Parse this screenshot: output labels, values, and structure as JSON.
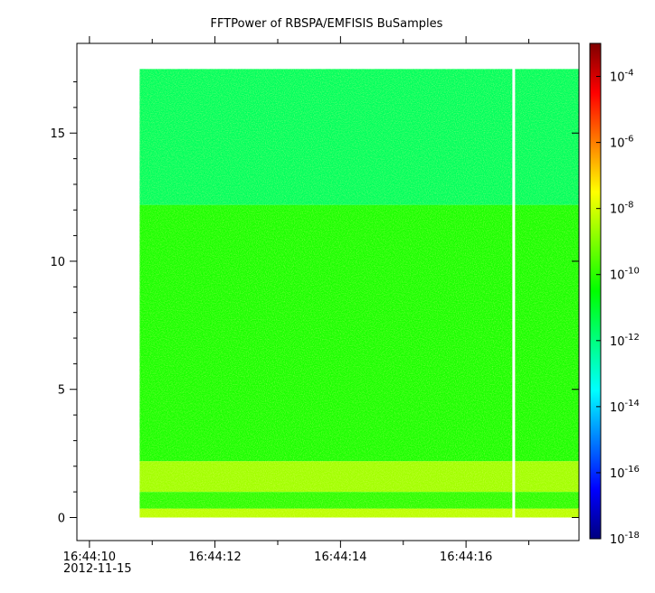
{
  "chart_data": {
    "type": "heatmap",
    "title": "FFTPower of RBSPA/EMFISIS  BuSamples",
    "xlabel": "",
    "ylabel": "",
    "x_date_label": "2012-11-15",
    "x_tick_labels": [
      "16:44:10",
      "16:44:12",
      "16:44:14",
      "16:44:16"
    ],
    "x_tick_seconds": [
      10,
      12,
      14,
      16
    ],
    "x_minor_tick_seconds": [
      11,
      13,
      15,
      17
    ],
    "xlim_seconds": [
      9.8,
      17.8
    ],
    "data_x_range_seconds": [
      10.8,
      17.8
    ],
    "gap_seconds": 16.76,
    "y_tick_labels": [
      "0",
      "5",
      "10",
      "15"
    ],
    "y_tick_values": [
      0,
      5,
      10,
      15
    ],
    "ylim": [
      -0.9,
      18.5
    ],
    "data_y_range": [
      0,
      17.5
    ],
    "colorbar": {
      "scale": "log",
      "range": [
        -18,
        -3
      ],
      "tick_exponents": [
        -18,
        -16,
        -14,
        -12,
        -10,
        -8,
        -6,
        -4
      ],
      "tick_base": "10",
      "colors": [
        "#00007f",
        "#0000ff",
        "#007fff",
        "#00ffff",
        "#00ff7f",
        "#00ff00",
        "#7fff00",
        "#ffff00",
        "#ff7f00",
        "#ff0000",
        "#7f0000"
      ]
    },
    "bands": [
      {
        "y_range": [
          0,
          0.35
        ],
        "log_power": -8.3
      },
      {
        "y_range": [
          0.35,
          1.0
        ],
        "log_power": -10.0
      },
      {
        "y_range": [
          1.0,
          2.2
        ],
        "log_power": -8.6
      },
      {
        "y_range": [
          2.2,
          12.2
        ],
        "log_power": -10.2
      },
      {
        "y_range": [
          12.2,
          17.5
        ],
        "log_power": -11.6
      }
    ]
  }
}
